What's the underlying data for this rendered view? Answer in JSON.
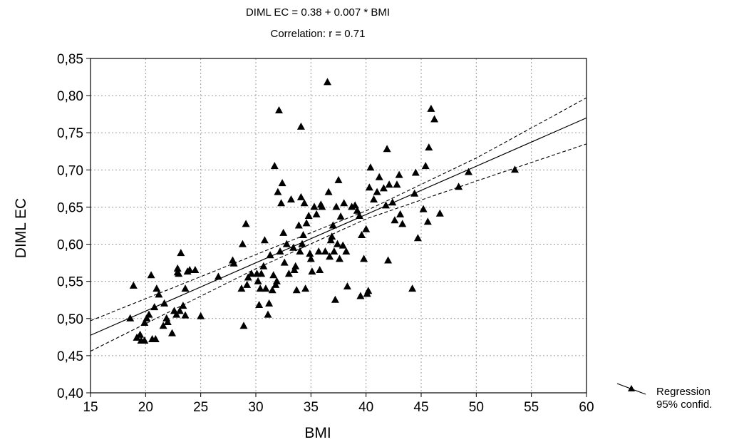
{
  "chart_data": {
    "type": "scatter",
    "title": "DIML EC = 0.38 + 0.007 * BMI",
    "subtitle": "Correlation: r = 0.71",
    "xlabel": "BMI",
    "ylabel": "DIML EC",
    "xlim": [
      15,
      60
    ],
    "ylim": [
      0.4,
      0.85
    ],
    "x_ticks": [
      15,
      20,
      25,
      30,
      35,
      40,
      45,
      50,
      55,
      60
    ],
    "x_tick_labels": [
      "15",
      "20",
      "25",
      "30",
      "35",
      "40",
      "45",
      "50",
      "55",
      "60"
    ],
    "y_ticks": [
      0.4,
      0.45,
      0.5,
      0.55,
      0.6,
      0.65,
      0.7,
      0.75,
      0.8,
      0.85
    ],
    "y_tick_labels": [
      "0,40",
      "0,45",
      "0,50",
      "0,55",
      "0,60",
      "0,65",
      "0,70",
      "0,75",
      "0,80",
      "0,85"
    ],
    "grid": true,
    "marker": "triangle",
    "marker_color": "#000000",
    "regression": {
      "intercept": 0.38,
      "slope": 0.0065
    },
    "confidence_band": {
      "lower": [
        [
          15,
          0.456
        ],
        [
          30,
          0.567
        ],
        [
          40,
          0.634
        ],
        [
          50,
          0.685
        ],
        [
          60,
          0.735
        ]
      ],
      "upper": [
        [
          15,
          0.497
        ],
        [
          30,
          0.586
        ],
        [
          40,
          0.645
        ],
        [
          50,
          0.716
        ],
        [
          60,
          0.797
        ]
      ]
    },
    "legend": {
      "position": "right-bottom",
      "entries": [
        "Regression",
        "95% confid."
      ]
    },
    "points": [
      [
        18.6,
        0.5
      ],
      [
        18.9,
        0.544
      ],
      [
        19.2,
        0.474
      ],
      [
        19.5,
        0.478
      ],
      [
        19.6,
        0.47
      ],
      [
        19.9,
        0.47
      ],
      [
        19.9,
        0.494
      ],
      [
        20.1,
        0.5
      ],
      [
        20.3,
        0.505
      ],
      [
        20.5,
        0.558
      ],
      [
        20.6,
        0.472
      ],
      [
        20.8,
        0.515
      ],
      [
        20.9,
        0.472
      ],
      [
        21.0,
        0.54
      ],
      [
        21.2,
        0.532
      ],
      [
        21.6,
        0.49
      ],
      [
        21.7,
        0.52
      ],
      [
        21.9,
        0.5
      ],
      [
        22.0,
        0.495
      ],
      [
        22.4,
        0.48
      ],
      [
        22.6,
        0.51
      ],
      [
        22.8,
        0.505
      ],
      [
        22.9,
        0.562
      ],
      [
        22.9,
        0.567
      ],
      [
        23.0,
        0.56
      ],
      [
        23.1,
        0.51
      ],
      [
        23.2,
        0.588
      ],
      [
        23.4,
        0.517
      ],
      [
        23.6,
        0.504
      ],
      [
        23.6,
        0.54
      ],
      [
        23.8,
        0.563
      ],
      [
        24.0,
        0.565
      ],
      [
        24.5,
        0.565
      ],
      [
        25.0,
        0.503
      ],
      [
        26.6,
        0.556
      ],
      [
        27.9,
        0.578
      ],
      [
        28.0,
        0.574
      ],
      [
        28.7,
        0.54
      ],
      [
        28.8,
        0.6
      ],
      [
        28.9,
        0.49
      ],
      [
        29.1,
        0.627
      ],
      [
        29.2,
        0.545
      ],
      [
        29.3,
        0.555
      ],
      [
        29.6,
        0.56
      ],
      [
        30.1,
        0.56
      ],
      [
        30.2,
        0.55
      ],
      [
        30.3,
        0.518
      ],
      [
        30.4,
        0.54
      ],
      [
        30.5,
        0.56
      ],
      [
        30.7,
        0.57
      ],
      [
        30.8,
        0.605
      ],
      [
        30.9,
        0.54
      ],
      [
        31.1,
        0.505
      ],
      [
        31.2,
        0.52
      ],
      [
        31.3,
        0.585
      ],
      [
        31.5,
        0.538
      ],
      [
        31.6,
        0.558
      ],
      [
        31.7,
        0.705
      ],
      [
        31.8,
        0.545
      ],
      [
        31.9,
        0.55
      ],
      [
        32.0,
        0.67
      ],
      [
        32.1,
        0.78
      ],
      [
        32.2,
        0.59
      ],
      [
        32.3,
        0.655
      ],
      [
        32.4,
        0.682
      ],
      [
        32.5,
        0.615
      ],
      [
        32.6,
        0.575
      ],
      [
        32.8,
        0.6
      ],
      [
        33.0,
        0.56
      ],
      [
        33.2,
        0.66
      ],
      [
        33.4,
        0.595
      ],
      [
        33.5,
        0.565
      ],
      [
        33.6,
        0.57
      ],
      [
        33.7,
        0.538
      ],
      [
        33.9,
        0.625
      ],
      [
        34.0,
        0.59
      ],
      [
        34.1,
        0.758
      ],
      [
        34.1,
        0.663
      ],
      [
        34.2,
        0.6
      ],
      [
        34.3,
        0.612
      ],
      [
        34.4,
        0.655
      ],
      [
        34.5,
        0.54
      ],
      [
        34.6,
        0.628
      ],
      [
        34.8,
        0.638
      ],
      [
        34.9,
        0.587
      ],
      [
        35.0,
        0.58
      ],
      [
        35.1,
        0.563
      ],
      [
        35.3,
        0.65
      ],
      [
        35.5,
        0.64
      ],
      [
        35.7,
        0.59
      ],
      [
        35.8,
        0.565
      ],
      [
        35.9,
        0.653
      ],
      [
        36.0,
        0.65
      ],
      [
        36.3,
        0.59
      ],
      [
        36.5,
        0.818
      ],
      [
        36.6,
        0.67
      ],
      [
        36.7,
        0.583
      ],
      [
        36.8,
        0.605
      ],
      [
        36.9,
        0.61
      ],
      [
        37.0,
        0.625
      ],
      [
        37.1,
        0.59
      ],
      [
        37.2,
        0.525
      ],
      [
        37.3,
        0.65
      ],
      [
        37.4,
        0.6
      ],
      [
        37.5,
        0.686
      ],
      [
        37.6,
        0.58
      ],
      [
        37.7,
        0.637
      ],
      [
        37.9,
        0.598
      ],
      [
        38.0,
        0.655
      ],
      [
        38.2,
        0.59
      ],
      [
        38.3,
        0.543
      ],
      [
        38.7,
        0.65
      ],
      [
        39.0,
        0.652
      ],
      [
        39.2,
        0.645
      ],
      [
        39.4,
        0.638
      ],
      [
        39.5,
        0.53
      ],
      [
        39.6,
        0.612
      ],
      [
        39.8,
        0.58
      ],
      [
        40.0,
        0.62
      ],
      [
        40.1,
        0.533
      ],
      [
        40.2,
        0.537
      ],
      [
        40.3,
        0.676
      ],
      [
        40.4,
        0.703
      ],
      [
        40.7,
        0.66
      ],
      [
        41.0,
        0.67
      ],
      [
        41.2,
        0.69
      ],
      [
        41.6,
        0.675
      ],
      [
        41.8,
        0.652
      ],
      [
        41.9,
        0.728
      ],
      [
        42.0,
        0.578
      ],
      [
        42.1,
        0.68
      ],
      [
        42.4,
        0.656
      ],
      [
        42.6,
        0.632
      ],
      [
        42.8,
        0.68
      ],
      [
        43.0,
        0.693
      ],
      [
        43.1,
        0.64
      ],
      [
        43.3,
        0.627
      ],
      [
        44.2,
        0.54
      ],
      [
        44.4,
        0.668
      ],
      [
        44.5,
        0.696
      ],
      [
        44.7,
        0.608
      ],
      [
        45.2,
        0.647
      ],
      [
        45.4,
        0.705
      ],
      [
        45.6,
        0.63
      ],
      [
        45.7,
        0.73
      ],
      [
        45.9,
        0.782
      ],
      [
        46.2,
        0.768
      ],
      [
        46.7,
        0.641
      ],
      [
        48.4,
        0.677
      ],
      [
        49.3,
        0.697
      ],
      [
        53.5,
        0.7
      ]
    ]
  }
}
